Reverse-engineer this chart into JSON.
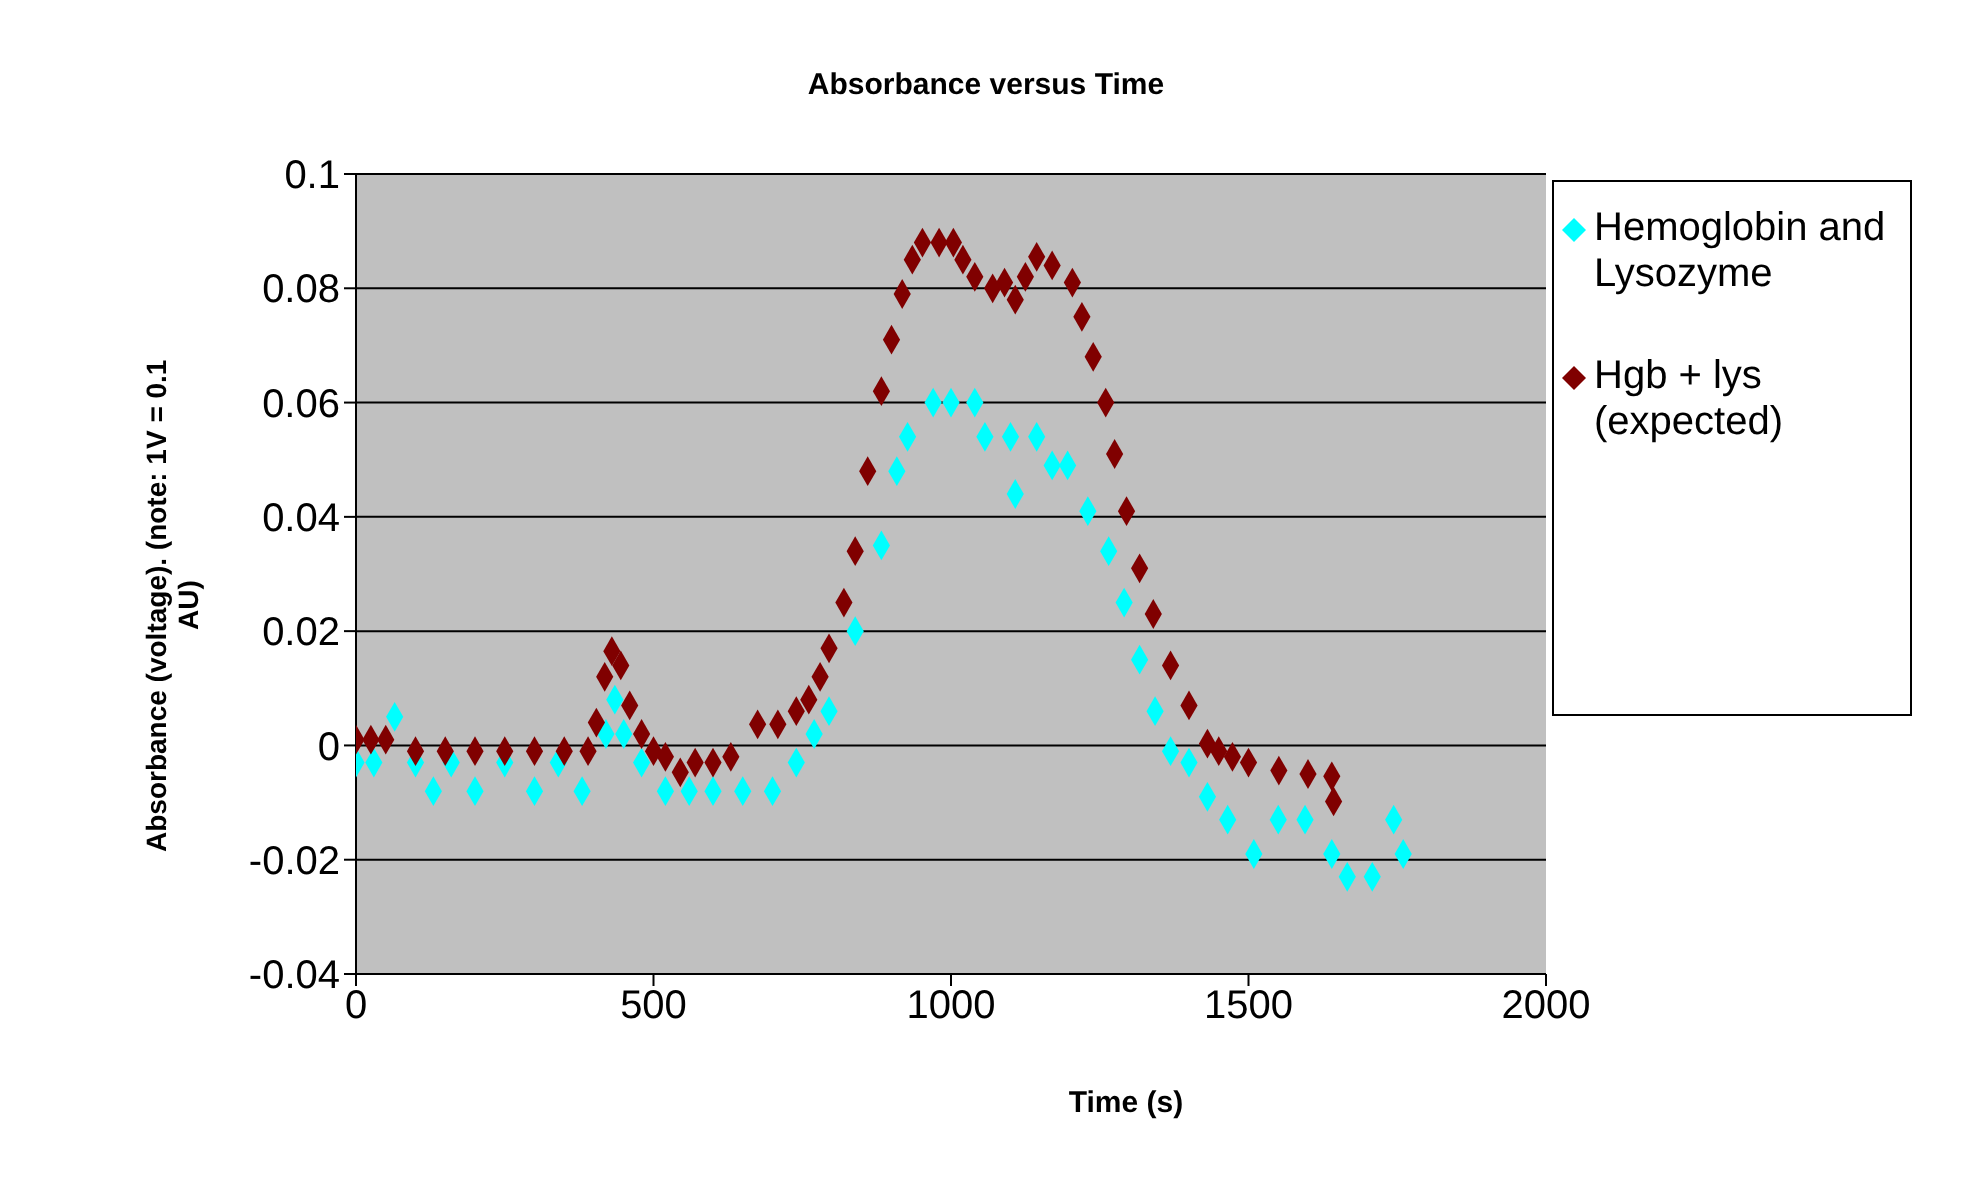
{
  "chart_data": {
    "type": "scatter",
    "title": "Absorbance versus Time",
    "xlabel": "Time (s)",
    "ylabel": "Absorbance (voltage).  (note: 1V = 0.1 AU)",
    "xlim": [
      0,
      2000
    ],
    "xticks": [
      0,
      500,
      1000,
      1500,
      2000
    ],
    "ylim": [
      -0.04,
      0.1
    ],
    "yticks": [
      -0.04,
      -0.02,
      0,
      0.02,
      0.04,
      0.06,
      0.08,
      0.1
    ],
    "grid": "y",
    "legend": "right",
    "marker": "diamond",
    "series": [
      {
        "name": "Hemoglobin and Lysozyme",
        "color": "#00ffff",
        "x": [
          0,
          30,
          65,
          100,
          130,
          160,
          200,
          250,
          300,
          340,
          380,
          420,
          435,
          450,
          480,
          520,
          560,
          600,
          650,
          700,
          740,
          770,
          795,
          839,
          883,
          909,
          927,
          970,
          1000,
          1040,
          1057,
          1100,
          1108,
          1144,
          1170,
          1196,
          1230,
          1265,
          1291,
          1317,
          1343,
          1369,
          1400,
          1431,
          1465,
          1509,
          1550,
          1595,
          1640,
          1666,
          1708,
          1744,
          1760
        ],
        "values": [
          -0.003,
          -0.003,
          0.005,
          -0.003,
          -0.008,
          -0.003,
          -0.008,
          -0.003,
          -0.008,
          -0.003,
          -0.008,
          0.002,
          0.008,
          0.002,
          -0.003,
          -0.008,
          -0.008,
          -0.008,
          -0.008,
          -0.008,
          -0.003,
          0.002,
          0.006,
          0.02,
          0.035,
          0.048,
          0.054,
          0.06,
          0.06,
          0.06,
          0.054,
          0.054,
          0.044,
          0.054,
          0.049,
          0.049,
          0.041,
          0.034,
          0.025,
          0.015,
          0.006,
          -0.001,
          -0.003,
          -0.009,
          -0.013,
          -0.019,
          -0.013,
          -0.013,
          -0.019,
          -0.023,
          -0.023,
          -0.013,
          -0.019
        ]
      },
      {
        "name": "Hgb + lys (expected)",
        "color": "#800000",
        "x": [
          0,
          25,
          50,
          100,
          150,
          200,
          250,
          300,
          350,
          390,
          404,
          418,
          430,
          445,
          460,
          480,
          500,
          520,
          545,
          570,
          600,
          630,
          675,
          709,
          740,
          761,
          780,
          795,
          820,
          839,
          860,
          883,
          900,
          918,
          935,
          952,
          980,
          1004,
          1020,
          1040,
          1070,
          1090,
          1108,
          1125,
          1144,
          1170,
          1204,
          1220,
          1239,
          1260,
          1275,
          1295,
          1317,
          1340,
          1369,
          1400,
          1431,
          1450,
          1473,
          1500,
          1551,
          1600,
          1640,
          1643
        ],
        "values": [
          0.001,
          0.001,
          0.001,
          -0.001,
          -0.001,
          -0.001,
          -0.001,
          -0.001,
          -0.001,
          -0.001,
          0.004,
          0.012,
          0.0165,
          0.014,
          0.007,
          0.002,
          -0.001,
          -0.002,
          -0.0047,
          -0.003,
          -0.003,
          -0.002,
          0.0037,
          0.0037,
          0.006,
          0.008,
          0.012,
          0.017,
          0.025,
          0.034,
          0.048,
          0.062,
          0.071,
          0.079,
          0.085,
          0.088,
          0.088,
          0.088,
          0.085,
          0.082,
          0.08,
          0.081,
          0.078,
          0.082,
          0.0855,
          0.084,
          0.081,
          0.075,
          0.068,
          0.06,
          0.051,
          0.041,
          0.031,
          0.023,
          0.014,
          0.007,
          0.0003,
          -0.001,
          -0.002,
          -0.003,
          -0.0044,
          -0.005,
          -0.0054,
          -0.0098
        ]
      }
    ]
  }
}
